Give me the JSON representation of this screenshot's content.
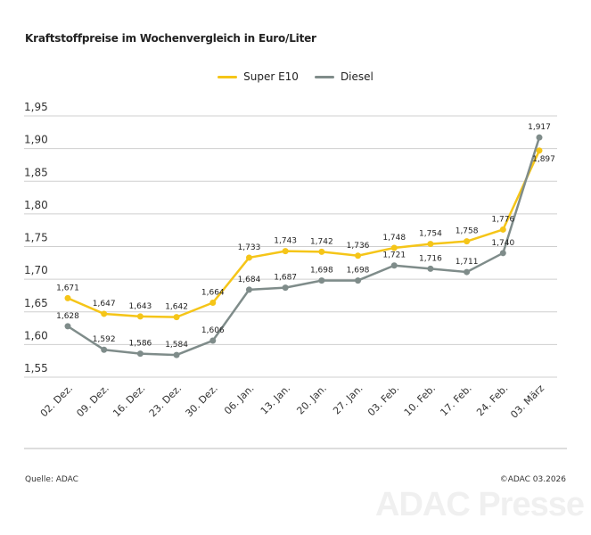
{
  "chart_data": {
    "type": "line",
    "title": "Kraftstoffpreise im Wochenvergleich in Euro/Liter",
    "categories": [
      "02. Dez.",
      "09. Dez.",
      "16. Dez.",
      "23. Dez.",
      "30. Dez.",
      "06. Jan.",
      "13. Jan.",
      "20. Jan.",
      "27. Jan.",
      "03. Feb.",
      "10. Feb.",
      "17. Feb.",
      "24. Feb.",
      "03. März"
    ],
    "series": [
      {
        "name": "Super E10",
        "color": "#f5c518",
        "values": [
          1.671,
          1.647,
          1.643,
          1.642,
          1.664,
          1.733,
          1.743,
          1.742,
          1.736,
          1.748,
          1.754,
          1.758,
          1.776,
          1.897
        ]
      },
      {
        "name": "Diesel",
        "color": "#7f8c8a",
        "values": [
          1.628,
          1.592,
          1.586,
          1.584,
          1.606,
          1.684,
          1.687,
          1.698,
          1.698,
          1.721,
          1.716,
          1.711,
          1.74,
          1.917
        ]
      }
    ],
    "ylim": [
      1.55,
      1.95
    ],
    "yticks": [
      "1,95",
      "1,90",
      "1,85",
      "1,80",
      "1,75",
      "1,70",
      "1,65",
      "1,60",
      "1,55"
    ],
    "grid": true,
    "legend": "top-center",
    "xlabel": "",
    "ylabel": ""
  },
  "footer": {
    "source": "Quelle: ADAC",
    "copyright": "©ADAC 03.2026"
  },
  "watermark": "ADAC Presse"
}
